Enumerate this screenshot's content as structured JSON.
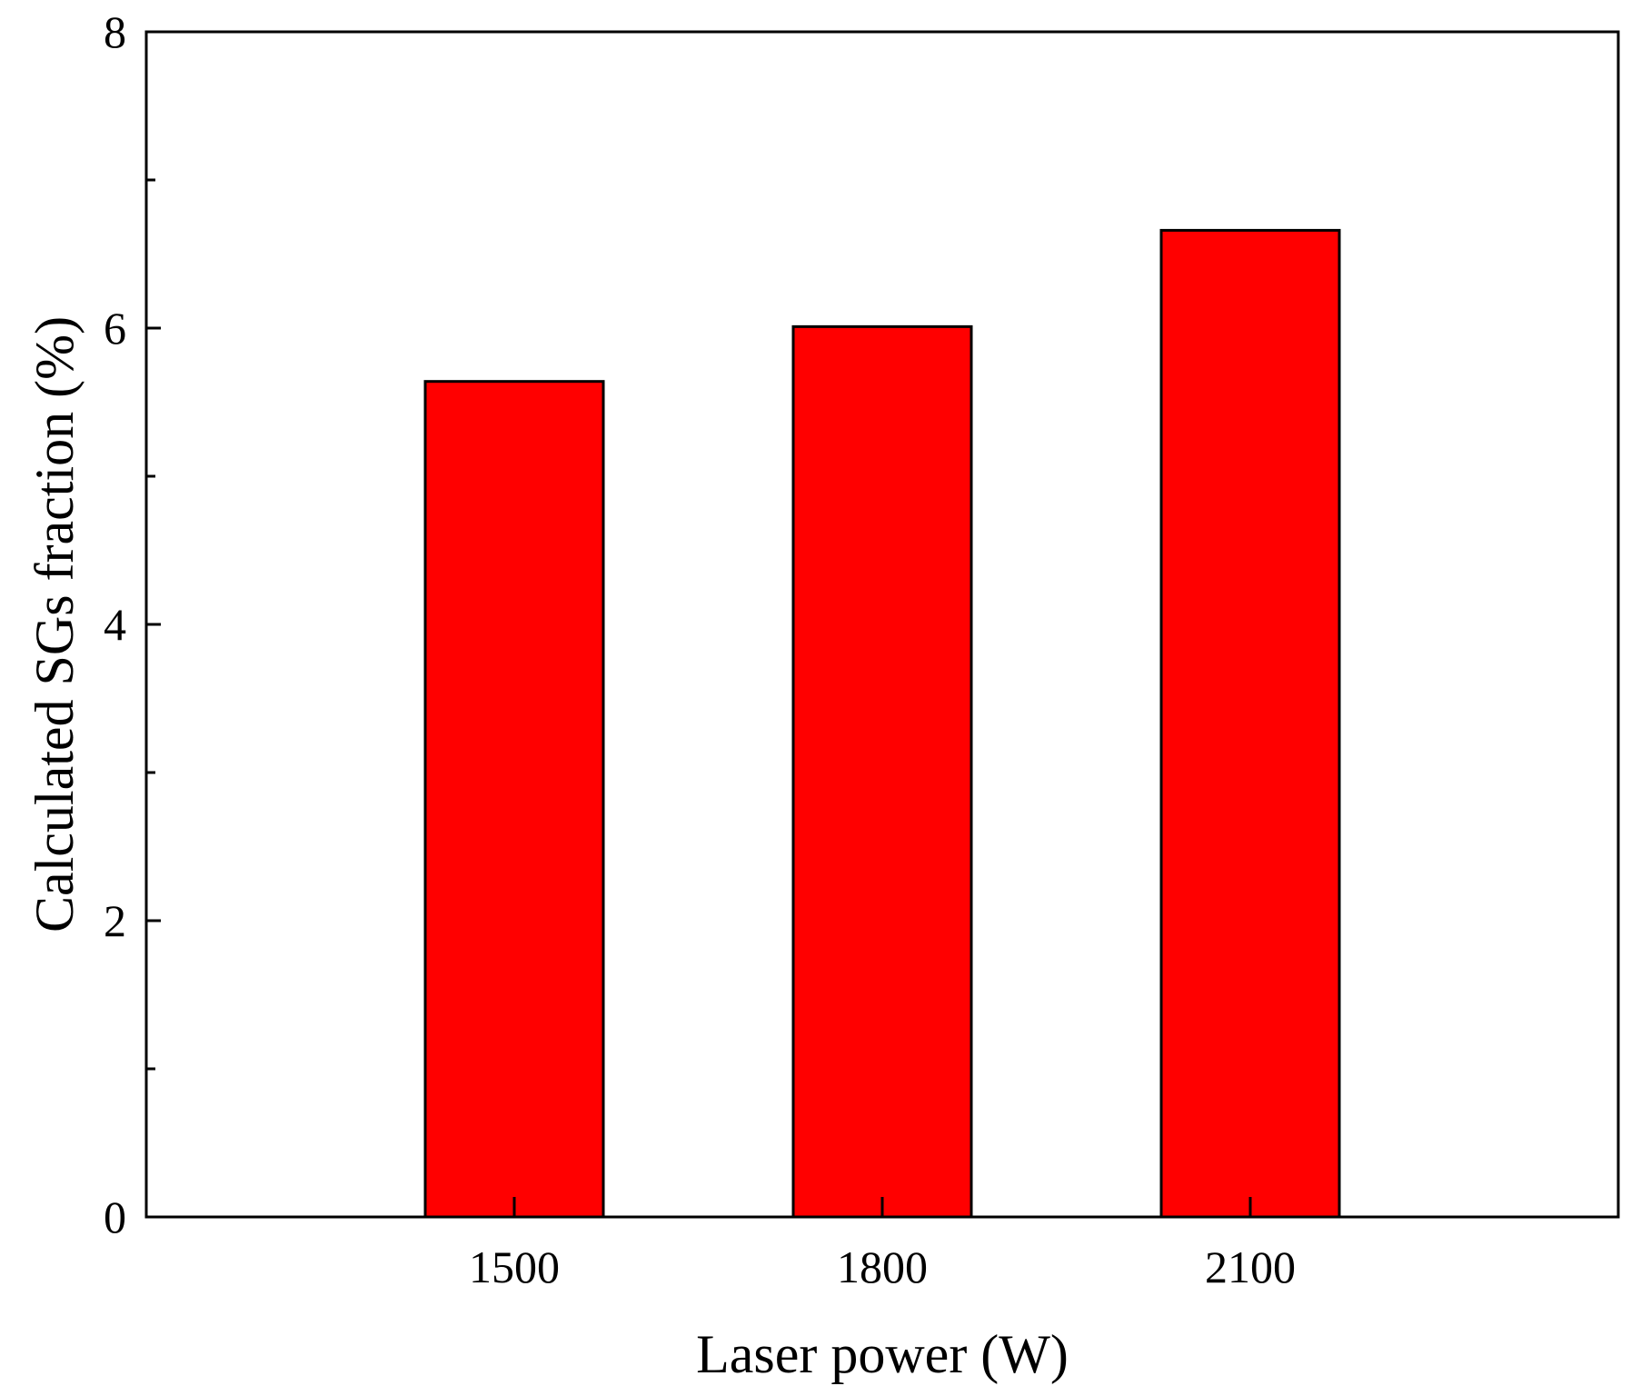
{
  "chart_data": {
    "type": "bar",
    "categories": [
      "1500",
      "1800",
      "2100"
    ],
    "values": [
      5.64,
      6.01,
      6.66
    ],
    "title": "",
    "xlabel": "Laser power (W)",
    "ylabel": "Calculated SGs fraction (%)",
    "ylim": [
      0,
      8
    ],
    "y_major_ticks": [
      0,
      2,
      4,
      6,
      8
    ],
    "y_minor_ticks": [
      1,
      3,
      5,
      7
    ],
    "y_tick_labels": [
      "0",
      "2",
      "4",
      "6",
      "8"
    ],
    "bar_color": "#ff0000",
    "bar_edge_color": "#000000",
    "grid": false,
    "legend": "none"
  }
}
